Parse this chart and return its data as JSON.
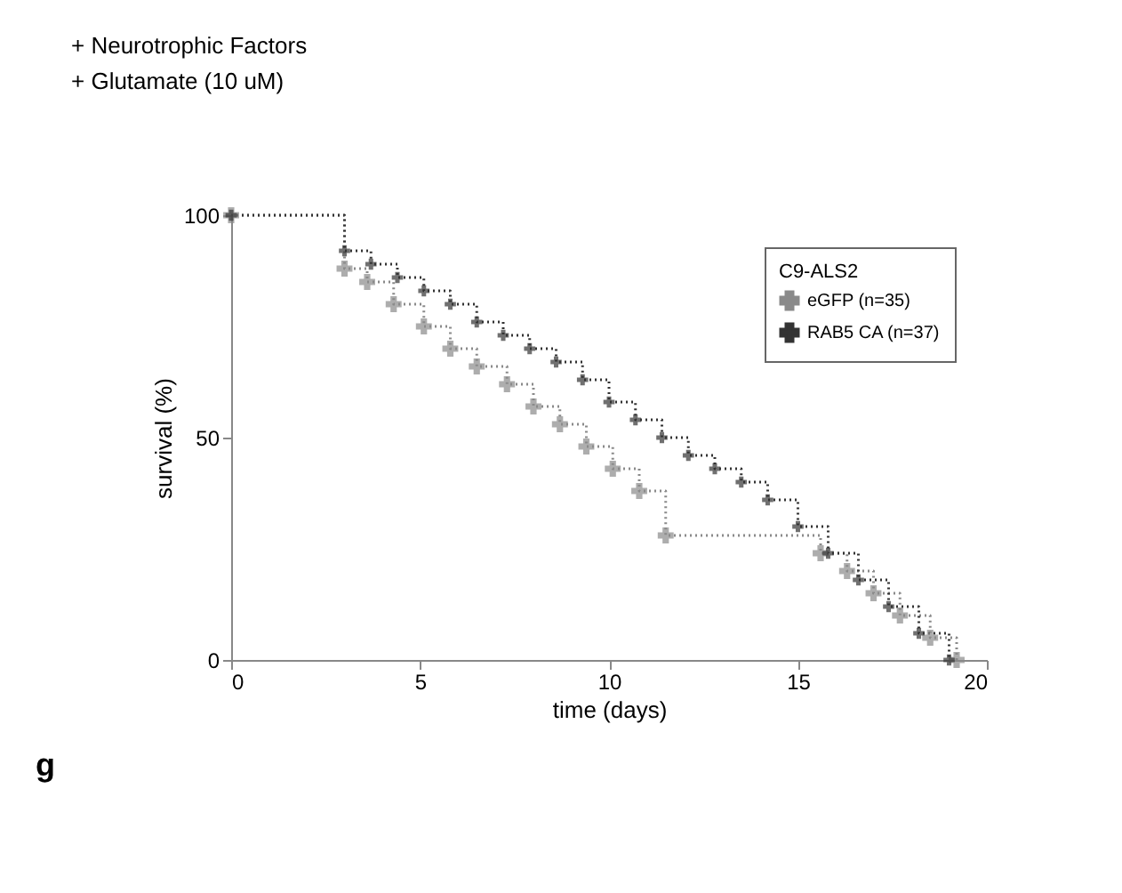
{
  "chart_data": {
    "type": "step",
    "xlabel": "time (days)",
    "ylabel": "survival (%)",
    "legend_title": "C9-ALS2",
    "annotations": [
      "+ Neurotrophic Factors",
      "+ Glutamate (10 uM)",
      "g"
    ],
    "xlim": [
      0,
      20
    ],
    "xticks": [
      0,
      5,
      10,
      15,
      20
    ],
    "ylim": [
      0,
      100
    ],
    "yticks": [
      0,
      50,
      100
    ],
    "grid": false,
    "legend": "top right",
    "marker": "cross",
    "line_style": "dotted",
    "series": [
      {
        "name": "eGFP (n=35)",
        "color": "#8a8a8a",
        "x": [
          0,
          3,
          3.6,
          4.3,
          5.1,
          5.8,
          6.5,
          7.3,
          8,
          8.7,
          9.4,
          10.1,
          10.8,
          11.5,
          15.6,
          16.3,
          17,
          17.7,
          18.5,
          19.2
        ],
        "values": [
          100,
          88,
          85,
          80,
          75,
          70,
          66,
          62,
          57,
          53,
          48,
          43,
          38,
          28,
          24,
          20,
          15,
          10,
          5,
          0
        ]
      },
      {
        "name": "RAB5 CA (n=37)",
        "color": "#333333",
        "x": [
          0,
          3,
          3.7,
          4.4,
          5.1,
          5.8,
          6.5,
          7.2,
          7.9,
          8.6,
          9.3,
          10,
          10.7,
          11.4,
          12.1,
          12.8,
          13.5,
          14.2,
          15,
          15.8,
          16.6,
          17.4,
          18.2,
          19
        ],
        "values": [
          100,
          92,
          89,
          86,
          83,
          80,
          76,
          73,
          70,
          67,
          63,
          58,
          54,
          50,
          46,
          43,
          40,
          36,
          30,
          24,
          18,
          12,
          6,
          0
        ]
      }
    ]
  }
}
